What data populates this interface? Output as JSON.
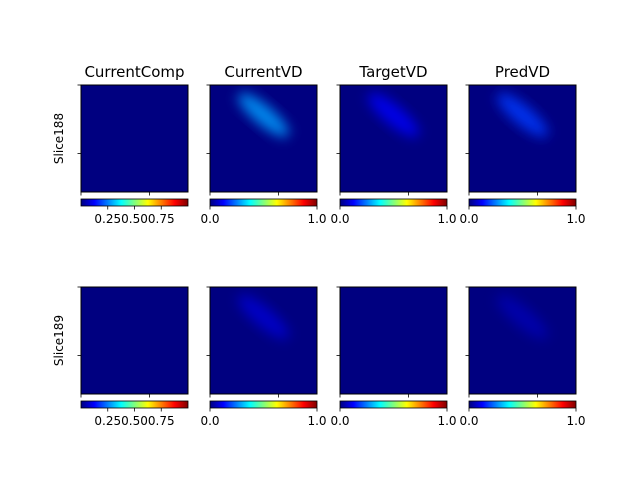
{
  "figure": {
    "background": "#ffffff",
    "colormap": "jet"
  },
  "colormap": {
    "name": "jet",
    "stops": [
      "#00007f",
      "#0000ff",
      "#007fff",
      "#00ffff",
      "#7fff7f",
      "#ffff00",
      "#ff7f00",
      "#ff0000",
      "#7f0000"
    ]
  },
  "chart_data": [
    {
      "type": "heatmap",
      "row": 0,
      "col": 0,
      "title": "CurrentComp",
      "ylabel": "Slice188",
      "content": "uniform",
      "colorbar": {
        "vmin": 0.0,
        "vmax": 1.0,
        "ticks": [
          0.25,
          0.5,
          0.75
        ],
        "tick_labels": [
          "0.25",
          "0.50",
          "0.75"
        ]
      }
    },
    {
      "type": "heatmap",
      "row": 0,
      "col": 1,
      "title": "CurrentVD",
      "ylabel": "",
      "content": "diagonal-band",
      "intensity": 0.28,
      "colorbar": {
        "vmin": 0.0,
        "vmax": 1.0,
        "ticks": [
          0.0,
          1.0
        ],
        "tick_labels": [
          "0.0",
          "1.0"
        ]
      }
    },
    {
      "type": "heatmap",
      "row": 0,
      "col": 2,
      "title": "TargetVD",
      "ylabel": "",
      "content": "diagonal-band",
      "intensity": 0.12,
      "colorbar": {
        "vmin": 0.0,
        "vmax": 1.0,
        "ticks": [
          0.0,
          1.0
        ],
        "tick_labels": [
          "0.0",
          "1.0"
        ]
      }
    },
    {
      "type": "heatmap",
      "row": 0,
      "col": 3,
      "title": "PredVD",
      "ylabel": "",
      "content": "diagonal-band",
      "intensity": 0.18,
      "colorbar": {
        "vmin": 0.0,
        "vmax": 1.0,
        "ticks": [
          0.0,
          1.0
        ],
        "tick_labels": [
          "0.0",
          "1.0"
        ]
      }
    },
    {
      "type": "heatmap",
      "row": 1,
      "col": 0,
      "title": "",
      "ylabel": "Slice189",
      "content": "uniform",
      "colorbar": {
        "vmin": 0.0,
        "vmax": 1.0,
        "ticks": [
          0.25,
          0.5,
          0.75
        ],
        "tick_labels": [
          "0.25",
          "0.50",
          "0.75"
        ]
      }
    },
    {
      "type": "heatmap",
      "row": 1,
      "col": 1,
      "title": "",
      "ylabel": "",
      "content": "diagonal-band",
      "intensity": 0.08,
      "colorbar": {
        "vmin": 0.0,
        "vmax": 1.0,
        "ticks": [
          0.0,
          1.0
        ],
        "tick_labels": [
          "0.0",
          "1.0"
        ]
      }
    },
    {
      "type": "heatmap",
      "row": 1,
      "col": 2,
      "title": "",
      "ylabel": "",
      "content": "uniform",
      "colorbar": {
        "vmin": 0.0,
        "vmax": 1.0,
        "ticks": [
          0.0,
          1.0
        ],
        "tick_labels": [
          "0.0",
          "1.0"
        ]
      }
    },
    {
      "type": "heatmap",
      "row": 1,
      "col": 3,
      "title": "",
      "ylabel": "",
      "content": "diagonal-band",
      "intensity": 0.05,
      "colorbar": {
        "vmin": 0.0,
        "vmax": 1.0,
        "ticks": [
          0.0,
          1.0
        ],
        "tick_labels": [
          "0.0",
          "1.0"
        ]
      }
    }
  ]
}
